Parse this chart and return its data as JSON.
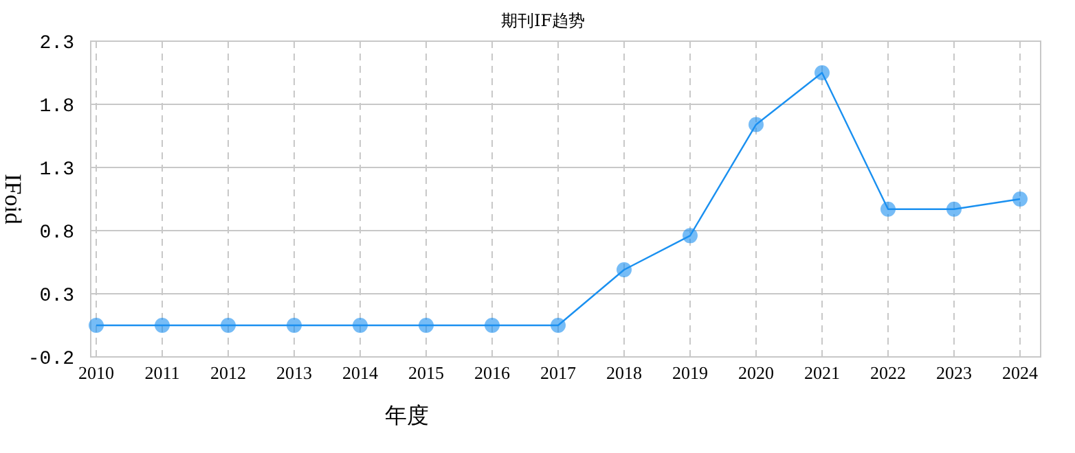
{
  "chart_data": {
    "type": "line",
    "title": "期刊IF趋势",
    "xlabel": "年度",
    "ylabel": "IFoid",
    "categories": [
      "2010",
      "2011",
      "2012",
      "2013",
      "2014",
      "2015",
      "2016",
      "2017",
      "2018",
      "2019",
      "2020",
      "2021",
      "2022",
      "2023",
      "2024"
    ],
    "series": [
      {
        "color": "#1a90f0",
        "values": [
          0.05,
          0.05,
          0.05,
          0.05,
          0.05,
          0.05,
          0.05,
          0.05,
          0.49,
          0.76,
          1.64,
          2.05,
          0.97,
          0.97,
          1.05
        ]
      }
    ],
    "ylim": [
      -0.2,
      2.3
    ],
    "yticks": [
      -0.2,
      0.3,
      0.8,
      1.3,
      1.8,
      2.3
    ],
    "grid": true,
    "marker": "circle",
    "line_style": "solid"
  }
}
